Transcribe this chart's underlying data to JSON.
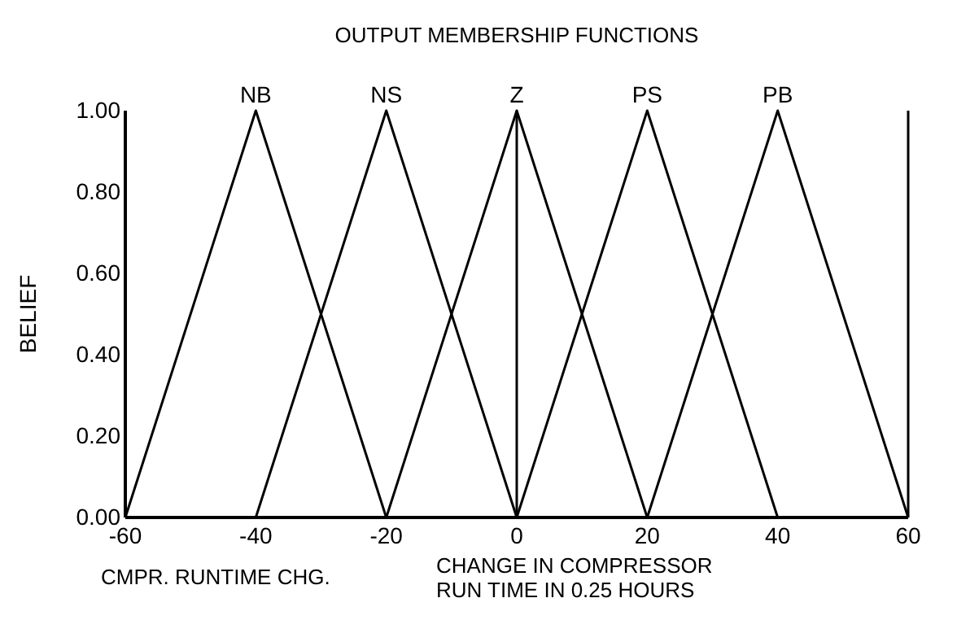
{
  "chart_data": {
    "type": "line",
    "title": "OUTPUT MEMBERSHIP FUNCTIONS",
    "ylabel": "BELIEF",
    "xlabel": "CHANGE IN COMPRESSOR\nRUN TIME IN 0.25 HOURS",
    "annotations": [
      "CMPR. RUNTIME CHG."
    ],
    "series": [
      {
        "name": "NB",
        "color": "#000000",
        "x": [
          -60,
          -40,
          -20
        ],
        "values": [
          0,
          1,
          0
        ]
      },
      {
        "name": "NS",
        "color": "#000000",
        "x": [
          -40,
          -20,
          0
        ],
        "values": [
          0,
          1,
          0
        ]
      },
      {
        "name": "Z",
        "color": "#000000",
        "x": [
          -20,
          0,
          20
        ],
        "values": [
          0,
          1,
          0
        ]
      },
      {
        "name": "PS",
        "color": "#000000",
        "x": [
          0,
          20,
          40
        ],
        "values": [
          0,
          1,
          0
        ]
      },
      {
        "name": "PB",
        "color": "#000000",
        "x": [
          20,
          40,
          60
        ],
        "values": [
          0,
          1,
          0
        ]
      }
    ],
    "ref_lines": [
      {
        "axis": "x",
        "value": 0,
        "color": "#000000"
      }
    ],
    "xlim": [
      -60,
      60
    ],
    "xticks": [
      -60,
      -40,
      -20,
      0,
      20,
      40,
      60
    ],
    "ylim": [
      0,
      1
    ],
    "yticks": [
      {
        "value": 0,
        "label": "0.00"
      },
      {
        "value": 0.2,
        "label": "0.20"
      },
      {
        "value": 0.4,
        "label": "0.40"
      },
      {
        "value": 0.6,
        "label": "0.60"
      },
      {
        "value": 0.8,
        "label": "0.80"
      },
      {
        "value": 1,
        "label": "1.00"
      }
    ],
    "grid": false,
    "legend": false,
    "marker": "none",
    "line_style": "solid"
  }
}
